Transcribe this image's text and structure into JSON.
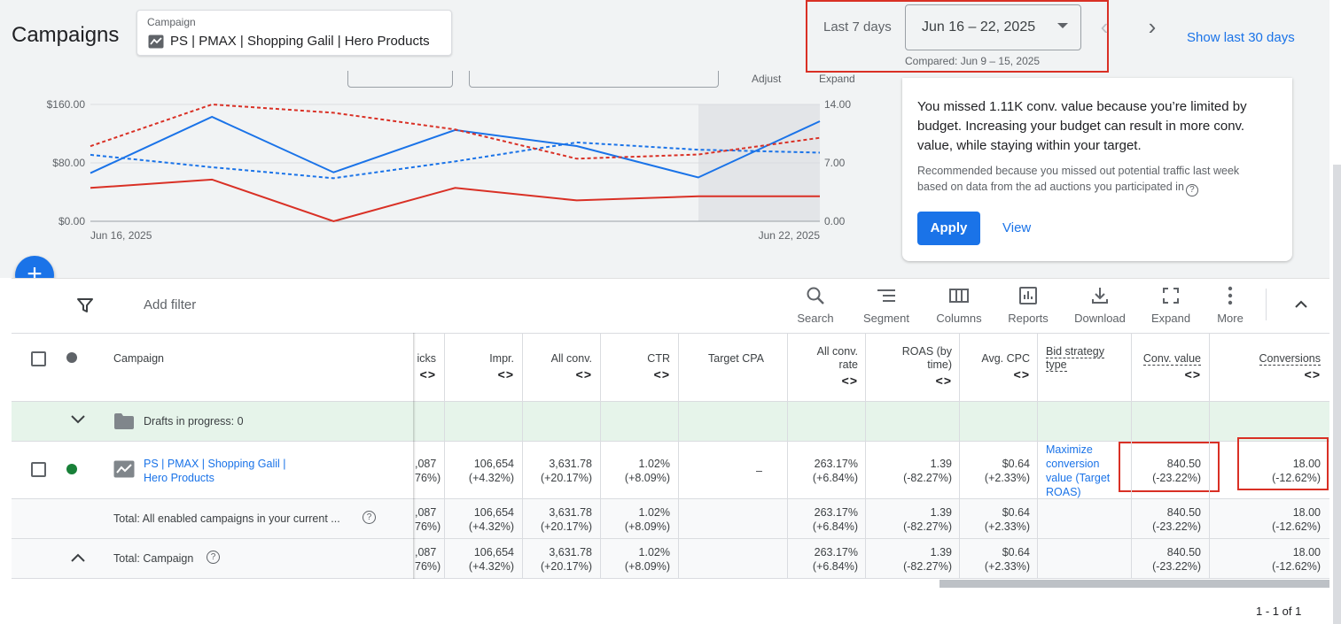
{
  "header": {
    "title": "Campaigns",
    "campaign_label": "Campaign",
    "campaign_value": "PS | PMAX | Shopping Galil | Hero Products",
    "range_label": "Last 7 days",
    "range_value": "Jun 16 – 22, 2025",
    "compared": "Compared: Jun 9 – 15, 2025",
    "show_last": "Show last 30 days"
  },
  "chart_controls": {
    "adjust": "Adjust",
    "expand": "Expand"
  },
  "chart_data": {
    "type": "line",
    "x": [
      "Jun 16, 2025",
      "Jun 17, 2025",
      "Jun 18, 2025",
      "Jun 19, 2025",
      "Jun 20, 2025",
      "Jun 21, 2025",
      "Jun 22, 2025"
    ],
    "xtick_labels": [
      "Jun 16, 2025",
      "Jun 22, 2025"
    ],
    "left_axis": {
      "ticks": [
        "$160.00",
        "$80.00",
        "$0.00"
      ],
      "ylim": [
        0,
        160
      ]
    },
    "right_axis": {
      "ticks": [
        "14.00",
        "7.00",
        "0.00"
      ],
      "ylim": [
        0,
        14
      ]
    },
    "grid": true,
    "series": [
      {
        "color": "#1a73e8",
        "dash": false,
        "axis": "left",
        "values": [
          66,
          143,
          67,
          125,
          103,
          60,
          137
        ]
      },
      {
        "color": "#1a73e8",
        "dash": true,
        "axis": "left",
        "values": [
          91,
          74,
          59,
          82,
          108,
          98,
          94
        ]
      },
      {
        "color": "#d93025",
        "dash": false,
        "axis": "right",
        "values": [
          4.0,
          5.0,
          0.0,
          4.0,
          2.5,
          3.0,
          3.0
        ]
      },
      {
        "color": "#d93025",
        "dash": true,
        "axis": "right",
        "values": [
          9.0,
          14.0,
          13.0,
          11.0,
          7.5,
          8.0,
          10.0
        ]
      }
    ]
  },
  "recommendation": {
    "title": "You missed 1.11K conv. value because you’re limited by budget. Increasing your budget can result in more conv. value, while staying within your target.",
    "subtitle": "Recommended because you missed out potential traffic last week based on data from the ad auctions you participated in",
    "apply": "Apply",
    "view": "View"
  },
  "toolbar": {
    "add_filter": "Add filter",
    "tools": [
      "Search",
      "Segment",
      "Columns",
      "Reports",
      "Download",
      "Expand",
      "More"
    ]
  },
  "table": {
    "headers": {
      "campaign": "Campaign",
      "clicks": "icks",
      "impr": "Impr.",
      "all_conv": "All conv.",
      "ctr": "CTR",
      "target_cpa": "Target CPA",
      "all_conv_rate_1": "All conv.",
      "all_conv_rate_2": "rate",
      "roas_1": "ROAS (by",
      "roas_2": "time)",
      "avg_cpc": "Avg. CPC",
      "bid_1": "Bid strategy",
      "bid_2": "type",
      "conv_value": "Conv. value",
      "conversions": "Conversions",
      "sort": "<>"
    },
    "drafts": "Drafts in progress: 0",
    "row": {
      "name_1": "PS | PMAX | Shopping Galil |",
      "name_2": "Hero Products",
      "clicks": ",087",
      "clicks_d": "76%)",
      "impr": "106,654",
      "impr_d": "(+4.32%)",
      "all_conv": "3,631.78",
      "all_conv_d": "(+20.17%)",
      "ctr": "1.02%",
      "ctr_d": "(+8.09%)",
      "target_cpa": "–",
      "rate": "263.17%",
      "rate_d": "(+6.84%)",
      "roas": "1.39",
      "roas_d": "(-82.27%)",
      "cpc": "$0.64",
      "cpc_d": "(+2.33%)",
      "bid_1": "Maximize",
      "bid_2": "conversion",
      "bid_3": "value (Target",
      "bid_4": "ROAS)",
      "conv_value": "840.50",
      "conv_value_d": "(-23.22%)",
      "conversions": "18.00",
      "conversions_d": "(-12.62%)"
    },
    "total_enabled": "Total: All enabled campaigns in your current ...",
    "total_campaign": "Total: Campaign",
    "pager": "1 - 1 of 1"
  }
}
